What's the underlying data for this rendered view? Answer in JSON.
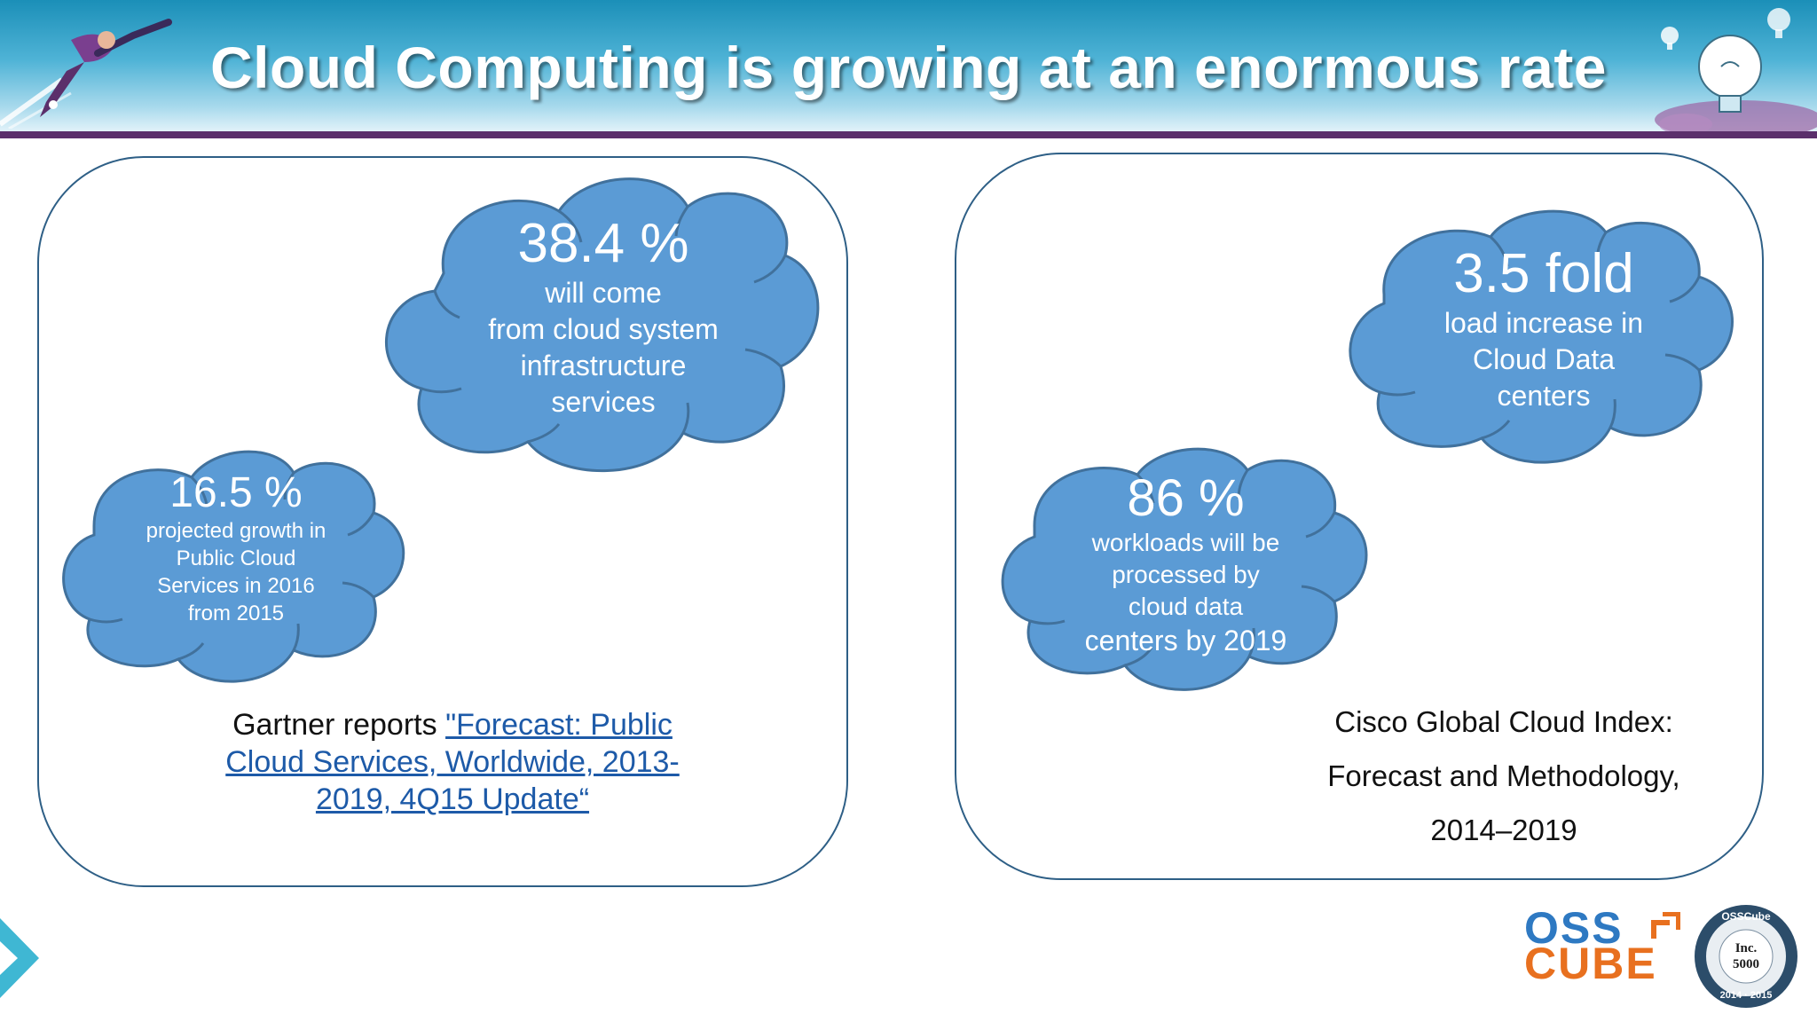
{
  "slide": {
    "title": "Cloud Computing is growing at an enormous rate"
  },
  "left_panel": {
    "cloud_large": {
      "headline": "38.4 %",
      "line1": "will come",
      "line2": "from cloud system",
      "line3": "infrastructure",
      "line4": "services"
    },
    "cloud_small": {
      "headline": "16.5 %",
      "line1": "projected growth in",
      "line2": "Public Cloud",
      "line3": "Services in 2016",
      "line4": "from 2015"
    },
    "source_prefix": "Gartner reports ",
    "source_link_line1": "\"Forecast: Public",
    "source_link_line2": "Cloud Services, Worldwide, 2013-",
    "source_link_line3": "2019, 4Q15 Update“"
  },
  "right_panel": {
    "cloud_large": {
      "headline": "3.5 fold",
      "line1": "load increase in",
      "line2": "Cloud Data",
      "line3": "centers"
    },
    "cloud_small": {
      "headline": "86 %",
      "line1": "workloads will be",
      "line2": "processed by",
      "line3": "cloud data",
      "line4": "centers by 2019"
    },
    "source_line1": "Cisco Global Cloud Index:",
    "source_line2": "Forecast and Methodology,",
    "source_line3": "2014–2019"
  },
  "branding": {
    "logo_top": "OSS",
    "logo_bottom": "CUBE",
    "badge_top": "OSSCube",
    "badge_center": "Inc. 5000",
    "badge_bottom": "2014 · 2015"
  },
  "colors": {
    "cloud_fill": "#5b9bd5",
    "cloud_stroke": "#41719c",
    "panel_border": "#2e5f86",
    "header_bar": "#5b2f6b",
    "logo_blue": "#2e79c2",
    "logo_orange": "#e8701f"
  },
  "icons": [
    "superhero-icon",
    "lightbulb-icon",
    "chevron-right-icon"
  ]
}
